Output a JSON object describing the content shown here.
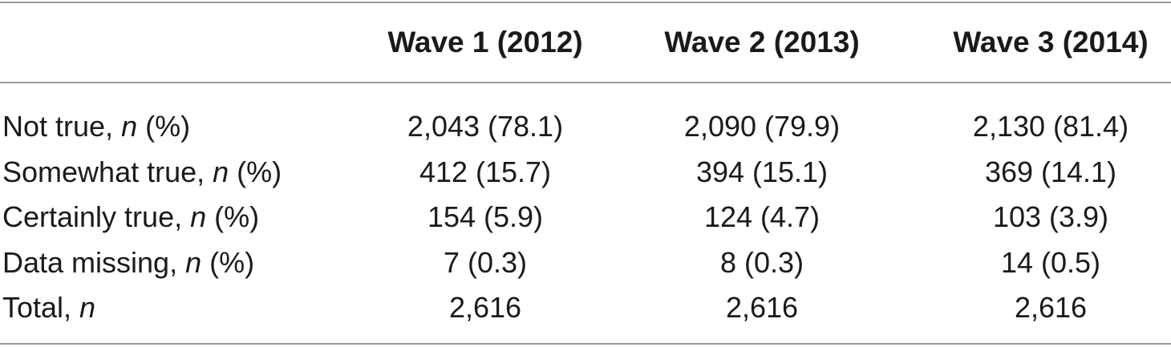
{
  "table": {
    "columns": [
      "Wave 1 (2012)",
      "Wave 2 (2013)",
      "Wave 3 (2014)"
    ],
    "rows": [
      {
        "label": "Not true, ",
        "label_italic": "n",
        "label_suffix": " (%)",
        "values": [
          "2,043 (78.1)",
          "2,090 (79.9)",
          "2,130 (81.4)"
        ]
      },
      {
        "label": "Somewhat true, ",
        "label_italic": "n",
        "label_suffix": " (%)",
        "values": [
          "412 (15.7)",
          "394 (15.1)",
          "369 (14.1)"
        ]
      },
      {
        "label": "Certainly true, ",
        "label_italic": "n",
        "label_suffix": " (%)",
        "values": [
          "154 (5.9)",
          "124 (4.7)",
          "103 (3.9)"
        ]
      },
      {
        "label": "Data missing, ",
        "label_italic": "n",
        "label_suffix": " (%)",
        "values": [
          "7 (0.3)",
          "8 (0.3)",
          "14 (0.5)"
        ]
      },
      {
        "label": "Total, ",
        "label_italic": "n",
        "label_suffix": "",
        "values": [
          "2,616",
          "2,616",
          "2,616"
        ]
      }
    ]
  }
}
